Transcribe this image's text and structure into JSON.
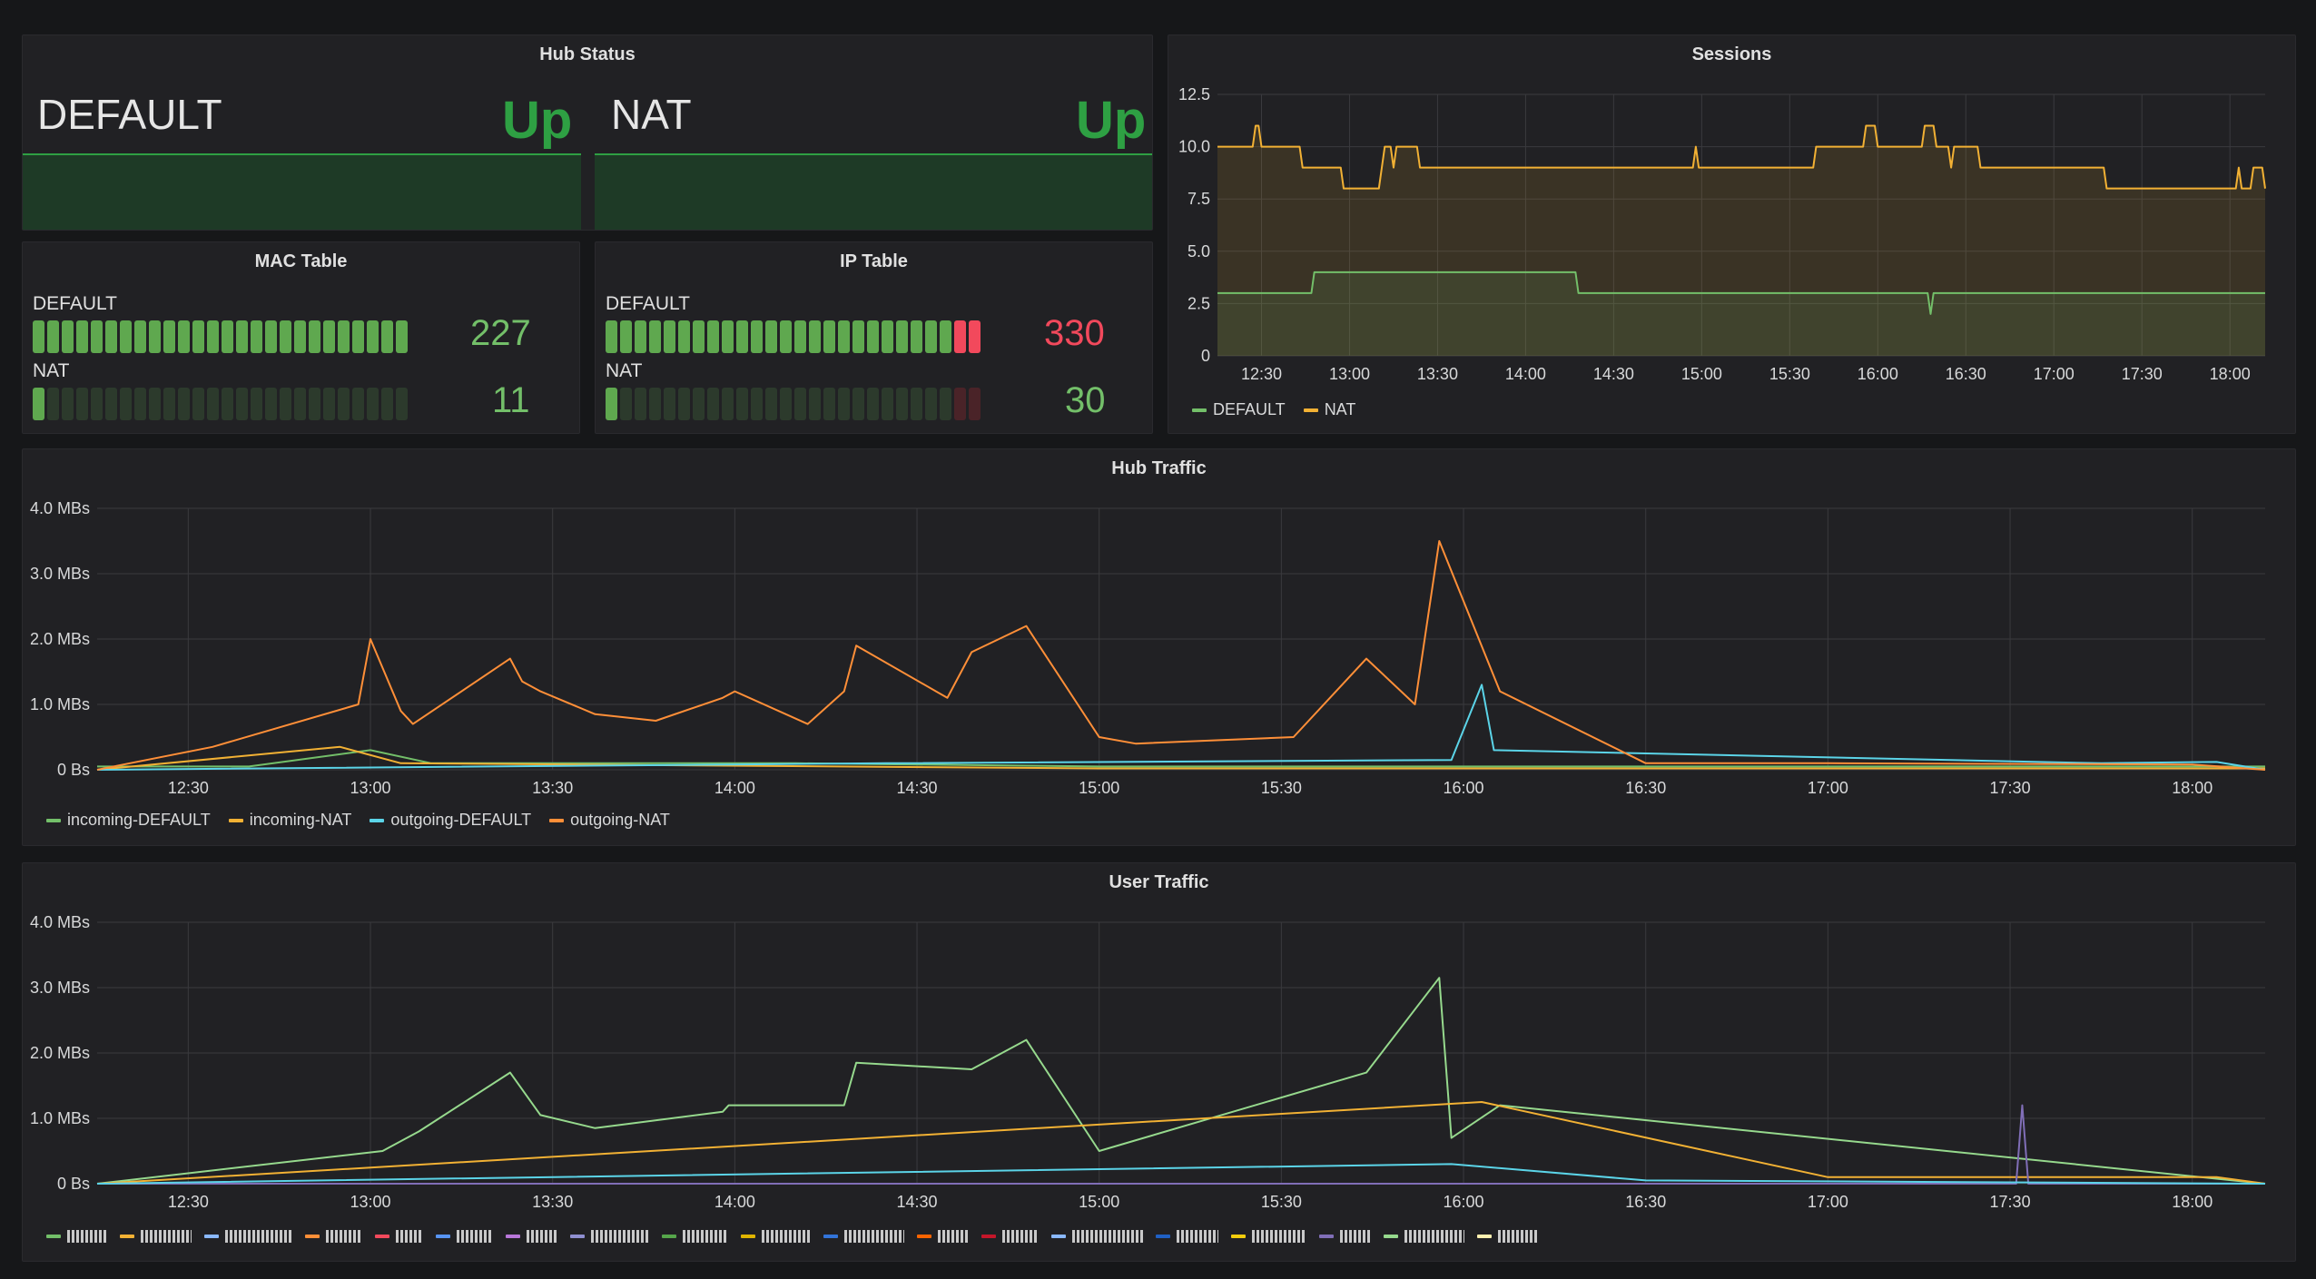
{
  "colors": {
    "background": "#161719",
    "panel": "#212124",
    "grid": "#3a3a3e",
    "axis_text": "#d8d9da",
    "green": "#2ea043",
    "green_stat": "#73bf69",
    "red_stat": "#f2495c",
    "incoming_default": "#73bf69",
    "incoming_nat": "#f2b134",
    "outgoing_default": "#5bd4e8",
    "outgoing_nat": "#ff8f38"
  },
  "hub_status": {
    "title": "Hub Status",
    "items": [
      {
        "name": "DEFAULT",
        "value": "Up"
      },
      {
        "name": "NAT",
        "value": "Up"
      }
    ]
  },
  "mac_table": {
    "title": "MAC Table",
    "rows": [
      {
        "label": "DEFAULT",
        "value": "227",
        "fill_fraction": 1.0,
        "color": "#73bf69"
      },
      {
        "label": "NAT",
        "value": "11",
        "fill_fraction": 0.05,
        "color": "#73bf69"
      }
    ]
  },
  "ip_table": {
    "title": "IP Table",
    "rows": [
      {
        "label": "DEFAULT",
        "value": "330",
        "fill_fraction": 1.0,
        "color": "#f2495c"
      },
      {
        "label": "NAT",
        "value": "30",
        "fill_fraction": 0.05,
        "color": "#73bf69"
      }
    ]
  },
  "time_ticks": [
    "12:30",
    "13:00",
    "13:30",
    "14:00",
    "14:30",
    "15:00",
    "15:30",
    "16:00",
    "16:30",
    "17:00",
    "17:30",
    "18:00"
  ],
  "sessions": {
    "title": "Sessions",
    "legend": [
      {
        "name": "DEFAULT",
        "color": "#73bf69"
      },
      {
        "name": "NAT",
        "color": "#f2b134"
      }
    ]
  },
  "hub_traffic": {
    "title": "Hub Traffic",
    "legend": [
      {
        "name": "incoming-DEFAULT",
        "color": "#73bf69"
      },
      {
        "name": "incoming-NAT",
        "color": "#f2b134"
      },
      {
        "name": "outgoing-DEFAULT",
        "color": "#5bd4e8"
      },
      {
        "name": "outgoing-NAT",
        "color": "#ff8f38"
      }
    ]
  },
  "user_traffic": {
    "title": "User Traffic",
    "legend_colors": [
      "#73bf69",
      "#f2b134",
      "#8ab8ff",
      "#ff8f38",
      "#f2495c",
      "#5794f2",
      "#b877d9",
      "#8f8fd0",
      "#56a64b",
      "#e0b400",
      "#3274d9",
      "#fa6400",
      "#c4162a",
      "#8ab8ff",
      "#1f60c4",
      "#f2cc0c",
      "#806eb7",
      "#96d98d",
      "#fff0b0"
    ]
  },
  "chart_data": [
    {
      "type": "line",
      "title": "Sessions",
      "y_ticks": [
        "0",
        "2.5",
        "5.0",
        "7.5",
        "10.0",
        "12.5"
      ],
      "ylim": [
        0,
        12.5
      ],
      "xlim": [
        "12:15",
        "18:12"
      ],
      "x_ticks": [
        "12:30",
        "13:00",
        "13:30",
        "14:00",
        "14:30",
        "15:00",
        "15:30",
        "16:00",
        "16:30",
        "17:00",
        "17:30",
        "18:00"
      ],
      "grid": true,
      "legend_position": "bottom-left",
      "series": [
        {
          "name": "NAT",
          "color": "#f2b134",
          "points": [
            [
              "12:15",
              10
            ],
            [
              "12:27",
              10
            ],
            [
              "12:28",
              11
            ],
            [
              "12:29",
              11
            ],
            [
              "12:30",
              10
            ],
            [
              "12:43",
              10
            ],
            [
              "12:44",
              9
            ],
            [
              "12:57",
              9
            ],
            [
              "12:58",
              8
            ],
            [
              "13:10",
              8
            ],
            [
              "13:11",
              9
            ],
            [
              "13:12",
              10
            ],
            [
              "13:14",
              10
            ],
            [
              "13:15",
              9
            ],
            [
              "13:16",
              10
            ],
            [
              "13:23",
              10
            ],
            [
              "13:24",
              9
            ],
            [
              "14:57",
              9
            ],
            [
              "14:58",
              10
            ],
            [
              "14:59",
              9
            ],
            [
              "15:38",
              9
            ],
            [
              "15:39",
              10
            ],
            [
              "15:55",
              10
            ],
            [
              "15:56",
              11
            ],
            [
              "15:59",
              11
            ],
            [
              "16:00",
              10
            ],
            [
              "16:15",
              10
            ],
            [
              "16:16",
              11
            ],
            [
              "16:19",
              11
            ],
            [
              "16:20",
              10
            ],
            [
              "16:24",
              10
            ],
            [
              "16:25",
              9
            ],
            [
              "16:26",
              10
            ],
            [
              "16:34",
              10
            ],
            [
              "16:35",
              9
            ],
            [
              "17:17",
              9
            ],
            [
              "17:18",
              8
            ],
            [
              "18:02",
              8
            ],
            [
              "18:03",
              9
            ],
            [
              "18:04",
              8
            ],
            [
              "18:07",
              8
            ],
            [
              "18:08",
              9
            ],
            [
              "18:11",
              9
            ],
            [
              "18:12",
              8
            ]
          ]
        },
        {
          "name": "DEFAULT",
          "color": "#73bf69",
          "points": [
            [
              "12:15",
              3
            ],
            [
              "12:47",
              3
            ],
            [
              "12:48",
              4
            ],
            [
              "14:17",
              4
            ],
            [
              "14:18",
              3
            ],
            [
              "16:17",
              3
            ],
            [
              "16:18",
              2
            ],
            [
              "16:19",
              3
            ],
            [
              "18:12",
              3
            ]
          ]
        }
      ]
    },
    {
      "type": "line",
      "title": "Hub Traffic",
      "y_ticks": [
        "0 Bs",
        "1.0 MBs",
        "2.0 MBs",
        "3.0 MBs",
        "4.0 MBs"
      ],
      "ylim": [
        0,
        4
      ],
      "xlim": [
        "12:15",
        "18:12"
      ],
      "x_ticks": [
        "12:30",
        "13:00",
        "13:30",
        "14:00",
        "14:30",
        "15:00",
        "15:30",
        "16:00",
        "16:30",
        "17:00",
        "17:30",
        "18:00"
      ],
      "grid": true,
      "legend_position": "bottom-left",
      "series": [
        {
          "name": "incoming-DEFAULT",
          "color": "#73bf69",
          "points": [
            [
              "12:15",
              0.05
            ],
            [
              "12:40",
              0.05
            ],
            [
              "13:00",
              0.3
            ],
            [
              "13:10",
              0.1
            ],
            [
              "14:10",
              0.1
            ],
            [
              "15:00",
              0.05
            ],
            [
              "16:00",
              0.05
            ],
            [
              "18:12",
              0.05
            ]
          ]
        },
        {
          "name": "incoming-NAT",
          "color": "#f2b134",
          "points": [
            [
              "12:15",
              0
            ],
            [
              "12:55",
              0.35
            ],
            [
              "13:05",
              0.1
            ],
            [
              "15:00",
              0.02
            ],
            [
              "18:12",
              0.02
            ]
          ]
        },
        {
          "name": "outgoing-DEFAULT",
          "color": "#5bd4e8",
          "points": [
            [
              "12:15",
              0
            ],
            [
              "14:25",
              0.1
            ],
            [
              "15:58",
              0.15
            ],
            [
              "16:03",
              1.3
            ],
            [
              "16:05",
              0.3
            ],
            [
              "17:45",
              0.1
            ],
            [
              "18:04",
              0.12
            ],
            [
              "18:12",
              0
            ]
          ]
        },
        {
          "name": "outgoing-NAT",
          "color": "#ff8f38",
          "points": [
            [
              "12:15",
              0
            ],
            [
              "12:34",
              0.35
            ],
            [
              "12:58",
              1.0
            ],
            [
              "13:00",
              2.0
            ],
            [
              "13:05",
              0.9
            ],
            [
              "13:07",
              0.7
            ],
            [
              "13:23",
              1.7
            ],
            [
              "13:25",
              1.35
            ],
            [
              "13:28",
              1.2
            ],
            [
              "13:37",
              0.85
            ],
            [
              "13:47",
              0.75
            ],
            [
              "13:58",
              1.1
            ],
            [
              "14:00",
              1.2
            ],
            [
              "14:12",
              0.7
            ],
            [
              "14:18",
              1.2
            ],
            [
              "14:20",
              1.9
            ],
            [
              "14:35",
              1.1
            ],
            [
              "14:39",
              1.8
            ],
            [
              "14:48",
              2.2
            ],
            [
              "15:00",
              0.5
            ],
            [
              "15:06",
              0.4
            ],
            [
              "15:32",
              0.5
            ],
            [
              "15:44",
              1.7
            ],
            [
              "15:52",
              1.0
            ],
            [
              "15:56",
              3.5
            ],
            [
              "16:06",
              1.2
            ],
            [
              "16:30",
              0.1
            ],
            [
              "17:00",
              0.1
            ],
            [
              "18:00",
              0.08
            ],
            [
              "18:12",
              0
            ]
          ]
        }
      ]
    },
    {
      "type": "line",
      "title": "User Traffic",
      "y_ticks": [
        "0 Bs",
        "1.0 MBs",
        "2.0 MBs",
        "3.0 MBs",
        "4.0 MBs"
      ],
      "ylim": [
        0,
        4
      ],
      "xlim": [
        "12:15",
        "18:12"
      ],
      "x_ticks": [
        "12:30",
        "13:00",
        "13:30",
        "14:00",
        "14:30",
        "15:00",
        "15:30",
        "16:00",
        "16:30",
        "17:00",
        "17:30",
        "18:00"
      ],
      "grid": true,
      "legend_position": "bottom-left",
      "series": [
        {
          "name": "",
          "color": "#96d98d",
          "points": [
            [
              "12:15",
              0
            ],
            [
              "13:02",
              0.5
            ],
            [
              "13:08",
              0.8
            ],
            [
              "13:23",
              1.7
            ],
            [
              "13:28",
              1.05
            ],
            [
              "13:37",
              0.85
            ],
            [
              "13:58",
              1.1
            ],
            [
              "13:59",
              1.2
            ],
            [
              "14:18",
              1.2
            ],
            [
              "14:20",
              1.85
            ],
            [
              "14:39",
              1.75
            ],
            [
              "14:48",
              2.2
            ],
            [
              "15:00",
              0.5
            ],
            [
              "15:44",
              1.7
            ],
            [
              "15:56",
              3.15
            ],
            [
              "15:58",
              0.7
            ],
            [
              "16:06",
              1.2
            ],
            [
              "18:12",
              0
            ]
          ]
        },
        {
          "name": "",
          "color": "#f2b134",
          "points": [
            [
              "12:15",
              0
            ],
            [
              "16:03",
              1.25
            ],
            [
              "17:00",
              0.1
            ],
            [
              "18:04",
              0.1
            ],
            [
              "18:12",
              0
            ]
          ]
        },
        {
          "name": "",
          "color": "#806eb7",
          "points": [
            [
              "12:15",
              0
            ],
            [
              "17:31",
              0
            ],
            [
              "17:32",
              1.2
            ],
            [
              "17:33",
              0
            ],
            [
              "18:12",
              0
            ]
          ]
        },
        {
          "name": "",
          "color": "#5bd4e8",
          "points": [
            [
              "12:15",
              0
            ],
            [
              "15:58",
              0.3
            ],
            [
              "16:30",
              0.05
            ],
            [
              "18:12",
              0
            ]
          ]
        }
      ]
    }
  ]
}
